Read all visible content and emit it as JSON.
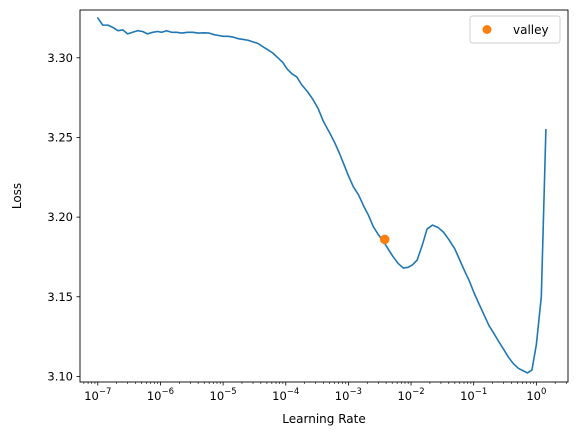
{
  "chart_data": {
    "type": "line",
    "xlabel": "Learning Rate",
    "ylabel": "Loss",
    "xscale": "log",
    "xlim": [
      5.2e-08,
      3.2
    ],
    "ylim": [
      3.0965,
      3.33
    ],
    "grid": false,
    "legend_position": "top-right",
    "x_ticks": [
      {
        "value": 1e-07,
        "base": "10",
        "exp": "−7"
      },
      {
        "value": 1e-06,
        "base": "10",
        "exp": "−6"
      },
      {
        "value": 1e-05,
        "base": "10",
        "exp": "−5"
      },
      {
        "value": 0.0001,
        "base": "10",
        "exp": "−4"
      },
      {
        "value": 0.001,
        "base": "10",
        "exp": "−3"
      },
      {
        "value": 0.01,
        "base": "10",
        "exp": "−2"
      },
      {
        "value": 0.1,
        "base": "10",
        "exp": "−1"
      },
      {
        "value": 1,
        "base": "10",
        "exp": "0"
      }
    ],
    "y_ticks": [
      {
        "value": 3.1,
        "label": "3.10"
      },
      {
        "value": 3.15,
        "label": "3.15"
      },
      {
        "value": 3.2,
        "label": "3.20"
      },
      {
        "value": 3.25,
        "label": "3.25"
      },
      {
        "value": 3.3,
        "label": "3.30"
      }
    ],
    "series": [
      {
        "color": "#1f77b4",
        "points": [
          [
            1e-07,
            3.325
          ],
          [
            1.2e-07,
            3.3205
          ],
          [
            1.45e-07,
            3.3205
          ],
          [
            1.75e-07,
            3.319
          ],
          [
            2.1e-07,
            3.317
          ],
          [
            2.5e-07,
            3.3175
          ],
          [
            3e-07,
            3.315
          ],
          [
            3.6e-07,
            3.316
          ],
          [
            4.3e-07,
            3.317
          ],
          [
            5.2e-07,
            3.3165
          ],
          [
            6.2e-07,
            3.315
          ],
          [
            7.5e-07,
            3.316
          ],
          [
            9e-07,
            3.3165
          ],
          [
            1.05e-06,
            3.316
          ],
          [
            1.25e-06,
            3.317
          ],
          [
            1.5e-06,
            3.316
          ],
          [
            1.8e-06,
            3.316
          ],
          [
            2.2e-06,
            3.3155
          ],
          [
            2.7e-06,
            3.316
          ],
          [
            3.3e-06,
            3.316
          ],
          [
            4e-06,
            3.3155
          ],
          [
            5e-06,
            3.3157
          ],
          [
            6e-06,
            3.3155
          ],
          [
            7.2e-06,
            3.3145
          ],
          [
            8.5e-06,
            3.314
          ],
          [
            1e-05,
            3.3135
          ],
          [
            1.2e-05,
            3.3135
          ],
          [
            1.45e-05,
            3.313
          ],
          [
            1.75e-05,
            3.312
          ],
          [
            2.1e-05,
            3.3115
          ],
          [
            2.5e-05,
            3.311
          ],
          [
            3e-05,
            3.31
          ],
          [
            3.6e-05,
            3.309
          ],
          [
            4.3e-05,
            3.307
          ],
          [
            5.2e-05,
            3.305
          ],
          [
            6.2e-05,
            3.303
          ],
          [
            7.5e-05,
            3.3
          ],
          [
            9e-05,
            3.297
          ],
          [
            0.000105,
            3.293
          ],
          [
            0.000125,
            3.29
          ],
          [
            0.00015,
            3.288
          ],
          [
            0.00018,
            3.283
          ],
          [
            0.00022,
            3.279
          ],
          [
            0.00027,
            3.274
          ],
          [
            0.00033,
            3.268
          ],
          [
            0.0004,
            3.26
          ],
          [
            0.0005,
            3.253
          ],
          [
            0.0006,
            3.247
          ],
          [
            0.00072,
            3.24
          ],
          [
            0.00085,
            3.233
          ],
          [
            0.001,
            3.226
          ],
          [
            0.0012,
            3.219
          ],
          [
            0.00145,
            3.214
          ],
          [
            0.00175,
            3.207
          ],
          [
            0.0021,
            3.201
          ],
          [
            0.0025,
            3.194
          ],
          [
            0.003,
            3.189
          ],
          [
            0.0036,
            3.185
          ],
          [
            0.0043,
            3.18
          ],
          [
            0.0052,
            3.175
          ],
          [
            0.0062,
            3.171
          ],
          [
            0.0075,
            3.168
          ],
          [
            0.009,
            3.1685
          ],
          [
            0.0105,
            3.17
          ],
          [
            0.0125,
            3.173
          ],
          [
            0.015,
            3.182
          ],
          [
            0.018,
            3.1925
          ],
          [
            0.022,
            3.195
          ],
          [
            0.027,
            3.1935
          ],
          [
            0.033,
            3.1905
          ],
          [
            0.04,
            3.186
          ],
          [
            0.05,
            3.18
          ],
          [
            0.06,
            3.173
          ],
          [
            0.072,
            3.166
          ],
          [
            0.085,
            3.16
          ],
          [
            0.1,
            3.153
          ],
          [
            0.12,
            3.146
          ],
          [
            0.145,
            3.139
          ],
          [
            0.175,
            3.132
          ],
          [
            0.21,
            3.127
          ],
          [
            0.25,
            3.122
          ],
          [
            0.3,
            3.117
          ],
          [
            0.36,
            3.112
          ],
          [
            0.43,
            3.108
          ],
          [
            0.52,
            3.105
          ],
          [
            0.62,
            3.1035
          ],
          [
            0.72,
            3.1022
          ],
          [
            0.85,
            3.104
          ],
          [
            1.0,
            3.12
          ],
          [
            1.2,
            3.15
          ],
          [
            1.3,
            3.2
          ],
          [
            1.42,
            3.255
          ]
        ]
      },
      {
        "name": "valley",
        "type": "scatter",
        "color": "#ff7f0e",
        "points": [
          [
            0.0038,
            3.186
          ]
        ]
      }
    ],
    "legend": [
      {
        "label": "valley",
        "color": "#ff7f0e",
        "marker": "circle"
      }
    ]
  }
}
